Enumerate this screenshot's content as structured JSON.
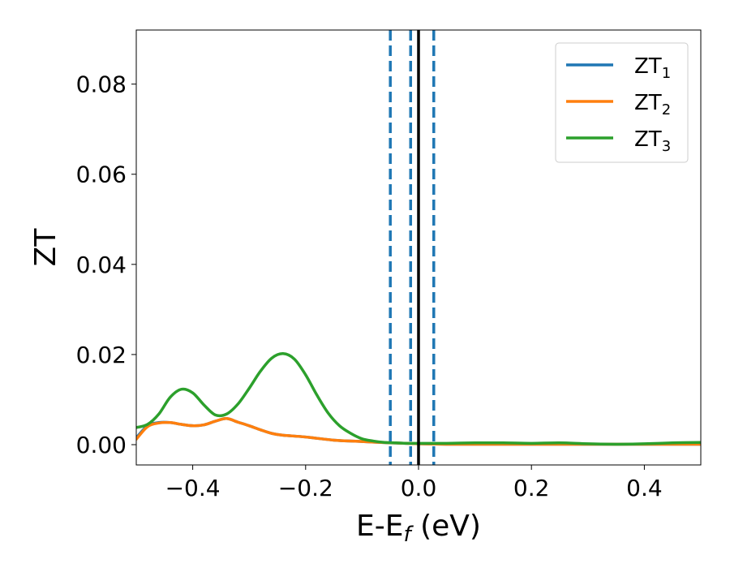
{
  "chart_data": {
    "type": "line",
    "title": "",
    "xlabel": "E-E",
    "xlabel_sub": "f",
    "xlabel_suffix": " (eV)",
    "ylabel": "ZT",
    "xlim": [
      -0.5,
      0.5
    ],
    "ylim": [
      -0.0045,
      0.092
    ],
    "x_ticks": [
      -0.4,
      -0.2,
      0.0,
      0.2,
      0.4
    ],
    "x_tick_labels": [
      "−0.4",
      "−0.2",
      "0.0",
      "0.2",
      "0.4"
    ],
    "y_ticks": [
      0.0,
      0.02,
      0.04,
      0.06,
      0.08
    ],
    "y_tick_labels": [
      "0.00",
      "0.02",
      "0.04",
      "0.06",
      "0.08"
    ],
    "grid": false,
    "legend_position": "top-right",
    "series": [
      {
        "name": "ZT",
        "name_sub": "1",
        "color": "#1f77b4",
        "x": [
          -0.5,
          -0.48,
          -0.46,
          -0.44,
          -0.42,
          -0.4,
          -0.38,
          -0.36,
          -0.34,
          -0.32,
          -0.3,
          -0.28,
          -0.26,
          -0.24,
          -0.2,
          -0.15,
          -0.1,
          -0.05,
          0.0,
          0.05,
          0.1,
          0.2,
          0.3,
          0.4,
          0.5
        ],
        "y": [
          0.0015,
          0.0042,
          0.0049,
          0.0049,
          0.0045,
          0.0042,
          0.0044,
          0.0052,
          0.0058,
          0.005,
          0.0042,
          0.0033,
          0.0025,
          0.0021,
          0.0017,
          0.001,
          0.0007,
          0.0004,
          0.0002,
          0.0001,
          0.0001,
          0.0001,
          0.0001,
          0.0001,
          0.0001
        ]
      },
      {
        "name": "ZT",
        "name_sub": "2",
        "color": "#ff7f0e",
        "x": [
          -0.5,
          -0.48,
          -0.46,
          -0.44,
          -0.42,
          -0.4,
          -0.38,
          -0.36,
          -0.34,
          -0.32,
          -0.3,
          -0.28,
          -0.26,
          -0.24,
          -0.2,
          -0.15,
          -0.1,
          -0.05,
          0.0,
          0.05,
          0.1,
          0.2,
          0.3,
          0.4,
          0.5
        ],
        "y": [
          0.0012,
          0.004,
          0.0048,
          0.0049,
          0.0045,
          0.0042,
          0.0044,
          0.0052,
          0.0058,
          0.005,
          0.0042,
          0.0033,
          0.0025,
          0.0021,
          0.0017,
          0.001,
          0.0007,
          0.0004,
          0.0002,
          0.0001,
          0.0001,
          0.0001,
          0.0001,
          0.0001,
          0.0001
        ]
      },
      {
        "name": "ZT",
        "name_sub": "3",
        "color": "#2ca02c",
        "x": [
          -0.5,
          -0.48,
          -0.46,
          -0.44,
          -0.42,
          -0.4,
          -0.38,
          -0.36,
          -0.34,
          -0.32,
          -0.3,
          -0.28,
          -0.26,
          -0.24,
          -0.22,
          -0.2,
          -0.18,
          -0.16,
          -0.14,
          -0.12,
          -0.1,
          -0.08,
          -0.06,
          -0.04,
          -0.02,
          0.0,
          0.05,
          0.1,
          0.15,
          0.2,
          0.25,
          0.3,
          0.35,
          0.4,
          0.45,
          0.5
        ],
        "y": [
          0.0038,
          0.0045,
          0.0068,
          0.0105,
          0.0123,
          0.0115,
          0.0088,
          0.0066,
          0.0068,
          0.009,
          0.0125,
          0.0163,
          0.0192,
          0.0202,
          0.019,
          0.0155,
          0.011,
          0.007,
          0.0042,
          0.0025,
          0.0013,
          0.0008,
          0.0005,
          0.0004,
          0.0003,
          0.0003,
          0.0003,
          0.0004,
          0.0004,
          0.0003,
          0.0004,
          0.0002,
          0.0001,
          0.0002,
          0.0004,
          0.0005
        ]
      }
    ],
    "vertical_lines": [
      {
        "x": -0.05,
        "style": "dashed",
        "color": "#1f77b4"
      },
      {
        "x": -0.014,
        "style": "dashed",
        "color": "#1f77b4"
      },
      {
        "x": 0.0,
        "style": "solid",
        "color": "#000000"
      },
      {
        "x": 0.027,
        "style": "dashed",
        "color": "#1f77b4"
      }
    ]
  }
}
